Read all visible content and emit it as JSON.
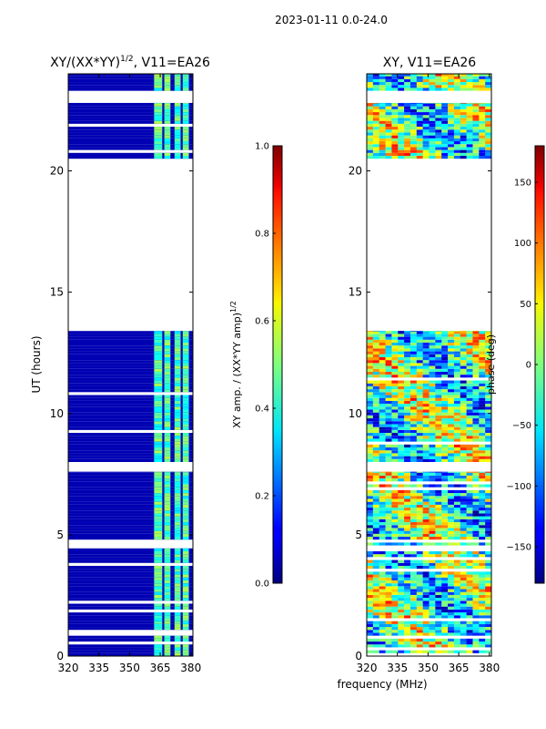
{
  "figure": {
    "suptitle": "2023-01-11 0.0-24.0",
    "xlabel": "frequency (MHz)"
  },
  "chart_data": [
    {
      "type": "heatmap",
      "title_main": "XY/(XX*YY)",
      "title_exp": "1/2",
      "title_tail": ", V11=EA26",
      "xlabel": "",
      "ylabel": "UT (hours)",
      "xlim": [
        320,
        381
      ],
      "ylim": [
        0,
        24
      ],
      "xticks": [
        320,
        335,
        350,
        365,
        380
      ],
      "yticks": [
        0,
        5,
        10,
        15,
        20
      ],
      "colorbar": {
        "label_main": "XY amp. / (XX*YY amp)",
        "label_exp": "1/2",
        "range": [
          0.0,
          1.0
        ],
        "ticks": [
          "0.0",
          "0.2",
          "0.4",
          "0.6",
          "0.8",
          "1.0"
        ],
        "colormap": "jet"
      },
      "data_bands_hours": [
        [
          0.0,
          7.6
        ],
        [
          8.0,
          13.4
        ],
        [
          20.5,
          22.8
        ],
        [
          23.3,
          24.0
        ]
      ],
      "value_background": 0.05,
      "bright_channels_mhz": [
        [
          362,
          366
        ],
        [
          367,
          370
        ],
        [
          372,
          375
        ],
        [
          376,
          379
        ]
      ],
      "value_bright": 0.45
    },
    {
      "type": "heatmap",
      "title": "XY, V11=EA26",
      "xlabel": "",
      "ylabel": "",
      "xlim": [
        320,
        381
      ],
      "ylim": [
        0,
        24
      ],
      "xticks": [
        320,
        335,
        350,
        365,
        380
      ],
      "yticks": [
        0,
        5,
        10,
        15,
        20
      ],
      "colorbar": {
        "label": "phase (deg)",
        "range": [
          -180,
          180
        ],
        "ticks": [
          "−150",
          "−100",
          "−50",
          "0",
          "50",
          "100",
          "150"
        ],
        "tick_values": [
          -150,
          -100,
          -50,
          0,
          50,
          100,
          150
        ],
        "colormap": "jet"
      },
      "data_bands_hours": [
        [
          0.0,
          7.6
        ],
        [
          8.0,
          13.4
        ],
        [
          20.5,
          22.8
        ],
        [
          23.3,
          24.0
        ]
      ],
      "value_range": [
        -180,
        180
      ]
    }
  ]
}
